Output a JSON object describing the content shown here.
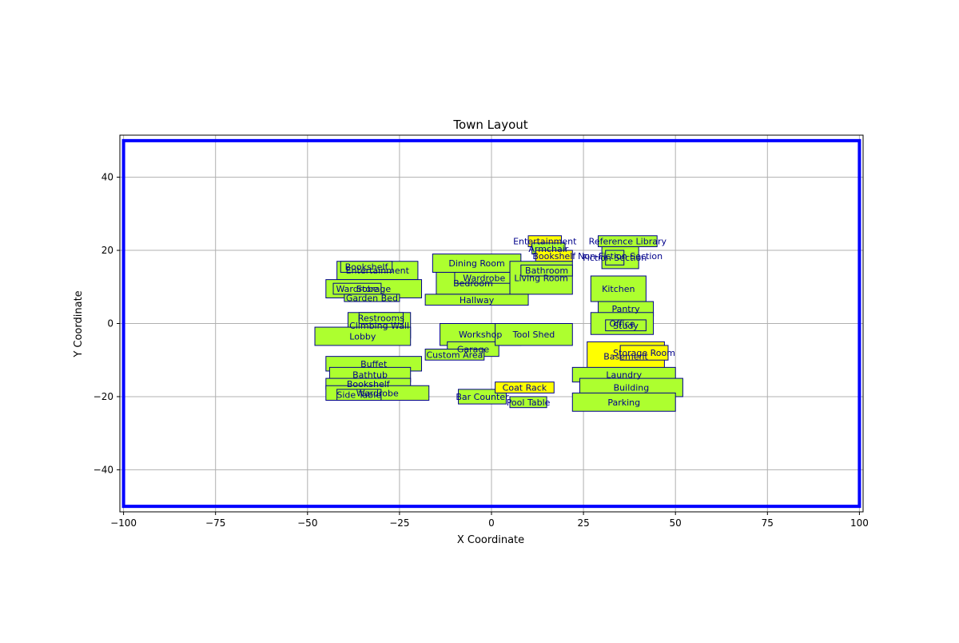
{
  "chart_data": {
    "type": "scatter",
    "title": "Town Layout",
    "xlabel": "X Coordinate",
    "ylabel": "Y Coordinate",
    "xlim": [
      -101,
      101
    ],
    "ylim": [
      -51.5,
      51.5
    ],
    "xticks": [
      -100,
      -75,
      -50,
      -25,
      0,
      25,
      50,
      75,
      100
    ],
    "yticks": [
      -40,
      -20,
      0,
      20,
      40
    ],
    "grid": true,
    "boundary": {
      "x0": -100,
      "y0": -50,
      "x1": 100,
      "y1": 50,
      "color": "#0000ff"
    },
    "colors": {
      "fill_green": "#adff2f",
      "fill_yellow": "#ffff00",
      "edge": "#00008b",
      "label": "#00008b"
    },
    "rooms": [
      {
        "label": "Entertainment",
        "x0": 10,
        "y0": 21,
        "x1": 19,
        "y1": 24,
        "fill": "yellow"
      },
      {
        "label": "Armchair",
        "x0": 11,
        "y0": 19,
        "x1": 20,
        "y1": 22,
        "fill": "green"
      },
      {
        "label": "Bookshelf",
        "x0": 12,
        "y0": 17,
        "x1": 22,
        "y1": 20,
        "fill": "yellow"
      },
      {
        "label": "Non-Fiction Section",
        "x0": 30,
        "y0": 15,
        "x1": 40,
        "y1": 22,
        "fill": "green"
      },
      {
        "label": "Fiction Section",
        "x0": 31,
        "y0": 16,
        "x1": 36,
        "y1": 20,
        "fill": "green"
      },
      {
        "label": "Reference Library",
        "x0": 29,
        "y0": 21,
        "x1": 45,
        "y1": 24,
        "fill": "green"
      },
      {
        "label": "Entertainment",
        "x0": -42,
        "y0": 12,
        "x1": -20,
        "y1": 17,
        "fill": "green"
      },
      {
        "label": "Bookshelf",
        "x0": -41,
        "y0": 14,
        "x1": -27,
        "y1": 17,
        "fill": "green"
      },
      {
        "label": "Storage",
        "x0": -45,
        "y0": 7,
        "x1": -19,
        "y1": 12,
        "fill": "green"
      },
      {
        "label": "Wardrobe",
        "x0": -43,
        "y0": 8,
        "x1": -30,
        "y1": 11,
        "fill": "green"
      },
      {
        "label": "Garden Bed",
        "x0": -40,
        "y0": 6,
        "x1": -25,
        "y1": 8,
        "fill": "green"
      },
      {
        "label": "Bedroom",
        "x0": -15,
        "y0": 8,
        "x1": 5,
        "y1": 14,
        "fill": "green"
      },
      {
        "label": "Wardrobe",
        "x0": -10,
        "y0": 11,
        "x1": 6,
        "y1": 14,
        "fill": "green"
      },
      {
        "label": "Dining Room",
        "x0": -16,
        "y0": 14,
        "x1": 8,
        "y1": 19,
        "fill": "green"
      },
      {
        "label": "Living Room",
        "x0": 5,
        "y0": 8,
        "x1": 22,
        "y1": 17,
        "fill": "green"
      },
      {
        "label": "Bathroom",
        "x0": 8,
        "y0": 13,
        "x1": 22,
        "y1": 16,
        "fill": "green"
      },
      {
        "label": "Hallway",
        "x0": -18,
        "y0": 5,
        "x1": 10,
        "y1": 8,
        "fill": "green"
      },
      {
        "label": "Kitchen",
        "x0": 27,
        "y0": 6,
        "x1": 42,
        "y1": 13,
        "fill": "green"
      },
      {
        "label": "Pantry",
        "x0": 29,
        "y0": 2,
        "x1": 44,
        "y1": 6,
        "fill": "green"
      },
      {
        "label": "Office",
        "x0": 27,
        "y0": -3,
        "x1": 44,
        "y1": 3,
        "fill": "green"
      },
      {
        "label": "Study",
        "x0": 31,
        "y0": -2,
        "x1": 42,
        "y1": 1,
        "fill": "green"
      },
      {
        "label": "Climbing Wall",
        "x0": -39,
        "y0": -4,
        "x1": -22,
        "y1": 3,
        "fill": "green"
      },
      {
        "label": "Restrooms",
        "x0": -36,
        "y0": 0,
        "x1": -24,
        "y1": 3,
        "fill": "green"
      },
      {
        "label": "Lobby",
        "x0": -48,
        "y0": -6,
        "x1": -22,
        "y1": -1,
        "fill": "green"
      },
      {
        "label": "Workshop",
        "x0": -14,
        "y0": -6,
        "x1": 8,
        "y1": 0,
        "fill": "green"
      },
      {
        "label": "Garage",
        "x0": -12,
        "y0": -9,
        "x1": 2,
        "y1": -5,
        "fill": "green"
      },
      {
        "label": "Tool Shed",
        "x0": 1,
        "y0": -6,
        "x1": 22,
        "y1": 0,
        "fill": "green"
      },
      {
        "label": "Custom Area",
        "x0": -18,
        "y0": -10,
        "x1": -2,
        "y1": -7,
        "fill": "green"
      },
      {
        "label": "Buffet",
        "x0": -45,
        "y0": -13,
        "x1": -19,
        "y1": -9,
        "fill": "green"
      },
      {
        "label": "Bathtub",
        "x0": -44,
        "y0": -16,
        "x1": -22,
        "y1": -12,
        "fill": "green"
      },
      {
        "label": "Bookshelf",
        "x0": -45,
        "y0": -18,
        "x1": -22,
        "y1": -15,
        "fill": "green"
      },
      {
        "label": "Wardrobe",
        "x0": -45,
        "y0": -21,
        "x1": -17,
        "y1": -17,
        "fill": "green"
      },
      {
        "label": "Side Table",
        "x0": -42,
        "y0": -21,
        "x1": -30,
        "y1": -18,
        "fill": "green"
      },
      {
        "label": "Bar Counter",
        "x0": -9,
        "y0": -22,
        "x1": 4,
        "y1": -18,
        "fill": "green"
      },
      {
        "label": "Coat Rack",
        "x0": 1,
        "y0": -19,
        "x1": 17,
        "y1": -16,
        "fill": "yellow"
      },
      {
        "label": "Pool Table",
        "x0": 5,
        "y0": -23,
        "x1": 15,
        "y1": -20,
        "fill": "green"
      },
      {
        "label": "Basement",
        "x0": 26,
        "y0": -13,
        "x1": 47,
        "y1": -5,
        "fill": "yellow"
      },
      {
        "label": "Storage Room",
        "x0": 35,
        "y0": -10,
        "x1": 48,
        "y1": -6,
        "fill": "yellow"
      },
      {
        "label": "Laundry",
        "x0": 22,
        "y0": -16,
        "x1": 50,
        "y1": -12,
        "fill": "green"
      },
      {
        "label": "Building",
        "x0": 24,
        "y0": -20,
        "x1": 52,
        "y1": -15,
        "fill": "green"
      },
      {
        "label": "Parking",
        "x0": 22,
        "y0": -24,
        "x1": 50,
        "y1": -19,
        "fill": "green"
      }
    ]
  }
}
